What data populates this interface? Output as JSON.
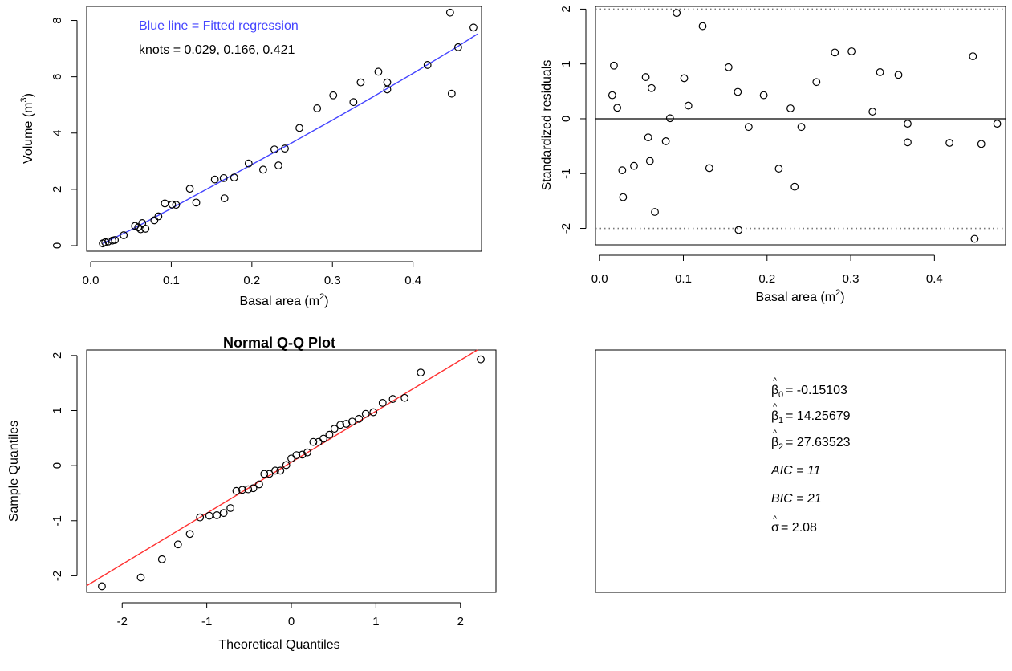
{
  "chart_data": [
    {
      "type": "scatter",
      "xlabel": "Basal area (m",
      "xlabel_sup": "2",
      "xlabel_close": ")",
      "ylabel": "Volume (m",
      "ylabel_sup": "3",
      "ylabel_close": ")",
      "xlim": [
        -0.005,
        0.485
      ],
      "ylim": [
        -0.2,
        8.5
      ],
      "xticks": [
        0,
        0.1,
        0.2,
        0.3,
        0.4
      ],
      "xtick_labels": [
        "0.0",
        "0.1",
        "0.2",
        "0.3",
        "0.4"
      ],
      "yticks": [
        0,
        2,
        4,
        6,
        8
      ],
      "ytick_labels": [
        "0",
        "2",
        "4",
        "6",
        "8"
      ],
      "annotations": [
        "Blue line = Fitted regression",
        "knots = 0.029, 0.166, 0.421"
      ],
      "line_color": "#4444ff",
      "series": [
        {
          "kind": "points",
          "points": [
            [
              0.015,
              0.08
            ],
            [
              0.018,
              0.12
            ],
            [
              0.022,
              0.15
            ],
            [
              0.027,
              0.18
            ],
            [
              0.03,
              0.2
            ],
            [
              0.041,
              0.37
            ],
            [
              0.055,
              0.7
            ],
            [
              0.059,
              0.65
            ],
            [
              0.062,
              0.58
            ],
            [
              0.064,
              0.8
            ],
            [
              0.068,
              0.6
            ],
            [
              0.079,
              0.9
            ],
            [
              0.084,
              1.04
            ],
            [
              0.092,
              1.5
            ],
            [
              0.101,
              1.46
            ],
            [
              0.106,
              1.45
            ],
            [
              0.123,
              2.02
            ],
            [
              0.131,
              1.53
            ],
            [
              0.154,
              2.35
            ],
            [
              0.165,
              2.4
            ],
            [
              0.166,
              1.68
            ],
            [
              0.178,
              2.42
            ],
            [
              0.196,
              2.92
            ],
            [
              0.214,
              2.7
            ],
            [
              0.228,
              3.42
            ],
            [
              0.233,
              2.85
            ],
            [
              0.241,
              3.45
            ],
            [
              0.259,
              4.18
            ],
            [
              0.281,
              4.88
            ],
            [
              0.301,
              5.34
            ],
            [
              0.326,
              5.1
            ],
            [
              0.335,
              5.8
            ],
            [
              0.357,
              6.18
            ],
            [
              0.368,
              5.8
            ],
            [
              0.368,
              5.55
            ],
            [
              0.418,
              6.42
            ],
            [
              0.446,
              8.28
            ],
            [
              0.448,
              5.4
            ],
            [
              0.456,
              7.05
            ],
            [
              0.475,
              7.75
            ]
          ]
        },
        {
          "kind": "line",
          "name": "",
          "points": [
            [
              0.015,
              0.08
            ],
            [
              0.05,
              0.56
            ],
            [
              0.1,
              1.32
            ],
            [
              0.15,
              2.1
            ],
            [
              0.2,
              2.88
            ],
            [
              0.25,
              3.66
            ],
            [
              0.3,
              4.46
            ],
            [
              0.35,
              5.28
            ],
            [
              0.4,
              6.12
            ],
            [
              0.45,
              6.98
            ],
            [
              0.48,
              7.52
            ]
          ]
        }
      ]
    },
    {
      "type": "scatter",
      "xlabel": "Basal area (m",
      "xlabel_sup": "2",
      "xlabel_close": ")",
      "ylabel": "Standardized residuals",
      "xlim": [
        -0.005,
        0.485
      ],
      "ylim": [
        -2.3,
        2.05
      ],
      "xticks": [
        0,
        0.1,
        0.2,
        0.3,
        0.4
      ],
      "xtick_labels": [
        "0.0",
        "0.1",
        "0.2",
        "0.3",
        "0.4"
      ],
      "yticks": [
        -2,
        -1,
        0,
        1,
        2
      ],
      "ytick_labels": [
        "-2",
        "-1",
        "0",
        "1",
        "2"
      ],
      "reference_lines": [
        -2,
        0,
        2
      ],
      "points": [
        [
          0.015,
          0.43
        ],
        [
          0.017,
          0.97
        ],
        [
          0.021,
          0.2
        ],
        [
          0.027,
          -0.94
        ],
        [
          0.028,
          -1.43
        ],
        [
          0.041,
          -0.86
        ],
        [
          0.055,
          0.76
        ],
        [
          0.058,
          -0.34
        ],
        [
          0.06,
          -0.77
        ],
        [
          0.062,
          0.56
        ],
        [
          0.066,
          -1.7
        ],
        [
          0.079,
          -0.41
        ],
        [
          0.084,
          0.01
        ],
        [
          0.092,
          1.93
        ],
        [
          0.101,
          0.74
        ],
        [
          0.106,
          0.24
        ],
        [
          0.123,
          1.69
        ],
        [
          0.131,
          -0.9
        ],
        [
          0.154,
          0.94
        ],
        [
          0.165,
          0.49
        ],
        [
          0.166,
          -2.03
        ],
        [
          0.178,
          -0.15
        ],
        [
          0.196,
          0.43
        ],
        [
          0.214,
          -0.91
        ],
        [
          0.228,
          0.19
        ],
        [
          0.233,
          -1.24
        ],
        [
          0.241,
          -0.15
        ],
        [
          0.259,
          0.67
        ],
        [
          0.281,
          1.21
        ],
        [
          0.301,
          1.23
        ],
        [
          0.326,
          0.13
        ],
        [
          0.335,
          0.85
        ],
        [
          0.357,
          0.8
        ],
        [
          0.368,
          -0.09
        ],
        [
          0.368,
          -0.43
        ],
        [
          0.418,
          -0.44
        ],
        [
          0.446,
          1.14
        ],
        [
          0.448,
          -2.19
        ],
        [
          0.456,
          -0.46
        ],
        [
          0.475,
          -0.09
        ]
      ]
    },
    {
      "type": "scatter",
      "title": "Normal Q-Q Plot",
      "xlabel": "Theoretical Quantiles",
      "ylabel": "Sample Quantiles",
      "xlim": [
        -2.42,
        2.42
      ],
      "ylim": [
        -2.3,
        2.1
      ],
      "xticks": [
        -2,
        -1,
        0,
        1,
        2
      ],
      "xtick_labels": [
        "-2",
        "-1",
        "0",
        "1",
        "2"
      ],
      "yticks": [
        -2,
        -1,
        0,
        1,
        2
      ],
      "ytick_labels": [
        "-2",
        "-1",
        "0",
        "1",
        "2"
      ],
      "line_color": "#ff3030",
      "reference_line": [
        [
          -2.42,
          -2.18
        ],
        [
          2.2,
          2.1
        ]
      ],
      "points": [
        [
          -2.24,
          -2.19
        ],
        [
          -1.78,
          -2.03
        ],
        [
          -1.53,
          -1.7
        ],
        [
          -1.34,
          -1.43
        ],
        [
          -1.2,
          -1.24
        ],
        [
          -1.08,
          -0.94
        ],
        [
          -0.97,
          -0.91
        ],
        [
          -0.88,
          -0.9
        ],
        [
          -0.8,
          -0.86
        ],
        [
          -0.72,
          -0.77
        ],
        [
          -0.65,
          -0.46
        ],
        [
          -0.58,
          -0.44
        ],
        [
          -0.51,
          -0.43
        ],
        [
          -0.45,
          -0.41
        ],
        [
          -0.38,
          -0.34
        ],
        [
          -0.32,
          -0.15
        ],
        [
          -0.26,
          -0.15
        ],
        [
          -0.19,
          -0.09
        ],
        [
          -0.13,
          -0.09
        ],
        [
          -0.06,
          0.01
        ],
        [
          0.0,
          0.13
        ],
        [
          0.06,
          0.19
        ],
        [
          0.13,
          0.2
        ],
        [
          0.19,
          0.24
        ],
        [
          0.26,
          0.43
        ],
        [
          0.32,
          0.43
        ],
        [
          0.38,
          0.49
        ],
        [
          0.45,
          0.56
        ],
        [
          0.51,
          0.67
        ],
        [
          0.58,
          0.74
        ],
        [
          0.65,
          0.76
        ],
        [
          0.72,
          0.8
        ],
        [
          0.8,
          0.85
        ],
        [
          0.88,
          0.94
        ],
        [
          0.97,
          0.97
        ],
        [
          1.08,
          1.14
        ],
        [
          1.2,
          1.21
        ],
        [
          1.34,
          1.23
        ],
        [
          1.53,
          1.69
        ],
        [
          2.24,
          1.93
        ]
      ]
    }
  ],
  "stats_panel": {
    "b0_sym": "β",
    "b0_sub": "0",
    "b0_val": "= -0.15103",
    "b1_sym": "β",
    "b1_sub": "1",
    "b1_val": "= 14.25679",
    "b2_sym": "β",
    "b2_sub": "2",
    "b2_val": "= 27.63523",
    "aic": "AIC =  11",
    "bic": "BIC =  21",
    "sigma_sym": "σ",
    "sigma_val": "= 2.08"
  }
}
